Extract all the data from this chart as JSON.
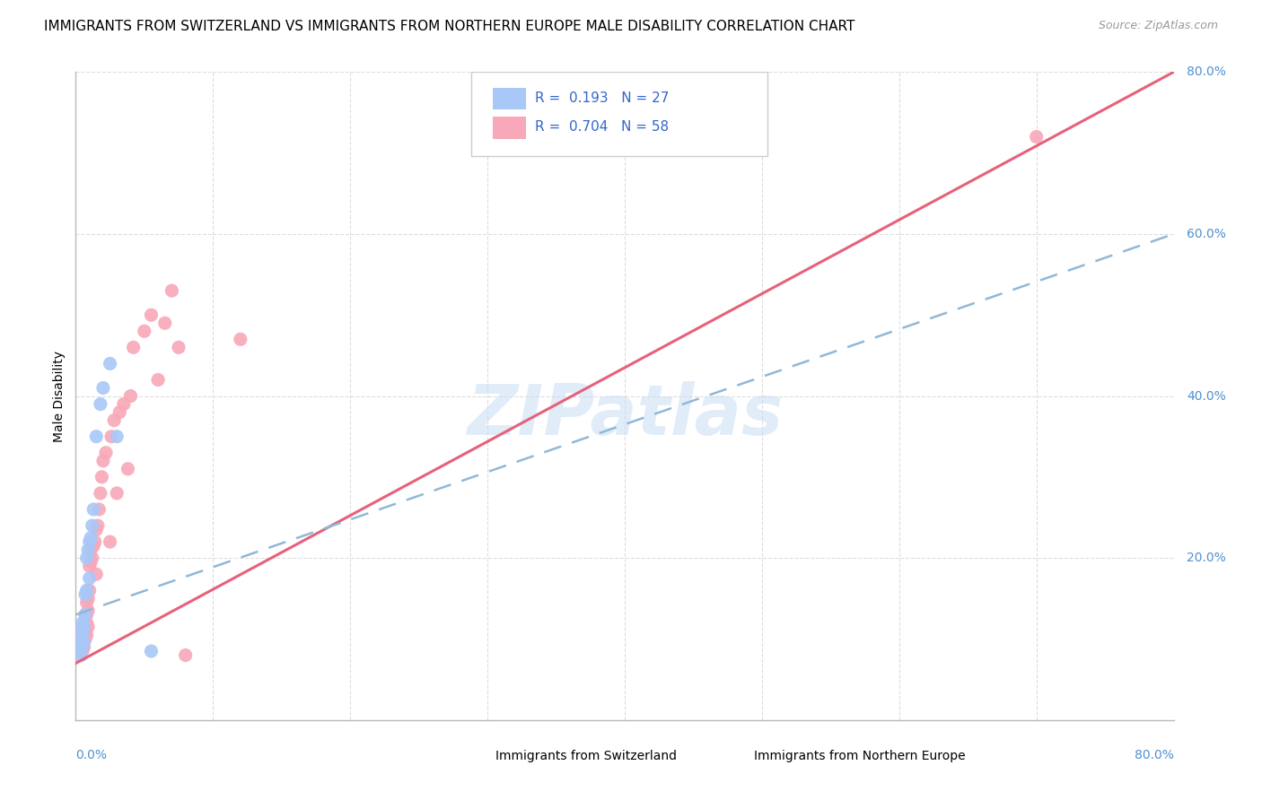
{
  "title": "IMMIGRANTS FROM SWITZERLAND VS IMMIGRANTS FROM NORTHERN EUROPE MALE DISABILITY CORRELATION CHART",
  "source": "Source: ZipAtlas.com",
  "ylabel": "Male Disability",
  "ytick_labels": [
    "20.0%",
    "40.0%",
    "60.0%",
    "80.0%"
  ],
  "ytick_values": [
    0.2,
    0.4,
    0.6,
    0.8
  ],
  "xtick_label_left": "0.0%",
  "xtick_label_right": "80.0%",
  "xlim": [
    0.0,
    0.8
  ],
  "ylim": [
    0.0,
    0.8
  ],
  "series1_label": "Immigrants from Switzerland",
  "series1_R": "0.193",
  "series1_N": "27",
  "series1_color": "#a8c8f8",
  "series2_label": "Immigrants from Northern Europe",
  "series2_R": "0.704",
  "series2_N": "58",
  "series2_color": "#f8a8b8",
  "switzerland_x": [
    0.002,
    0.003,
    0.003,
    0.004,
    0.004,
    0.004,
    0.005,
    0.005,
    0.005,
    0.006,
    0.006,
    0.007,
    0.007,
    0.008,
    0.008,
    0.009,
    0.01,
    0.01,
    0.011,
    0.012,
    0.013,
    0.015,
    0.018,
    0.02,
    0.025,
    0.03,
    0.055
  ],
  "switzerland_y": [
    0.095,
    0.1,
    0.085,
    0.11,
    0.09,
    0.08,
    0.12,
    0.105,
    0.095,
    0.115,
    0.095,
    0.13,
    0.155,
    0.16,
    0.2,
    0.21,
    0.22,
    0.175,
    0.225,
    0.24,
    0.26,
    0.35,
    0.39,
    0.41,
    0.44,
    0.35,
    0.085
  ],
  "northern_europe_x": [
    0.002,
    0.002,
    0.003,
    0.003,
    0.003,
    0.004,
    0.004,
    0.004,
    0.005,
    0.005,
    0.005,
    0.005,
    0.006,
    0.006,
    0.006,
    0.007,
    0.007,
    0.007,
    0.008,
    0.008,
    0.008,
    0.008,
    0.009,
    0.009,
    0.009,
    0.01,
    0.01,
    0.011,
    0.011,
    0.012,
    0.013,
    0.014,
    0.015,
    0.015,
    0.016,
    0.017,
    0.018,
    0.019,
    0.02,
    0.022,
    0.025,
    0.026,
    0.028,
    0.03,
    0.032,
    0.035,
    0.038,
    0.04,
    0.042,
    0.05,
    0.055,
    0.06,
    0.065,
    0.07,
    0.075,
    0.08,
    0.12,
    0.7
  ],
  "northern_europe_y": [
    0.085,
    0.1,
    0.095,
    0.105,
    0.08,
    0.09,
    0.095,
    0.11,
    0.085,
    0.095,
    0.1,
    0.115,
    0.09,
    0.105,
    0.115,
    0.1,
    0.11,
    0.13,
    0.105,
    0.12,
    0.13,
    0.145,
    0.115,
    0.135,
    0.15,
    0.16,
    0.19,
    0.195,
    0.21,
    0.2,
    0.215,
    0.22,
    0.18,
    0.235,
    0.24,
    0.26,
    0.28,
    0.3,
    0.32,
    0.33,
    0.22,
    0.35,
    0.37,
    0.28,
    0.38,
    0.39,
    0.31,
    0.4,
    0.46,
    0.48,
    0.5,
    0.42,
    0.49,
    0.53,
    0.46,
    0.08,
    0.47,
    0.72
  ],
  "sw_line_x0": 0.0,
  "sw_line_y0": 0.13,
  "sw_line_x1": 0.8,
  "sw_line_y1": 0.6,
  "ne_line_x0": 0.0,
  "ne_line_y0": 0.07,
  "ne_line_x1": 0.8,
  "ne_line_y1": 0.8,
  "background_color": "#ffffff",
  "grid_color": "#dddddd",
  "watermark_text": "ZIPatlas",
  "watermark_color": "#c8dff5",
  "title_fontsize": 11,
  "axis_label_fontsize": 10,
  "tick_label_fontsize": 10,
  "legend_fontsize": 11,
  "dot_size": 120
}
